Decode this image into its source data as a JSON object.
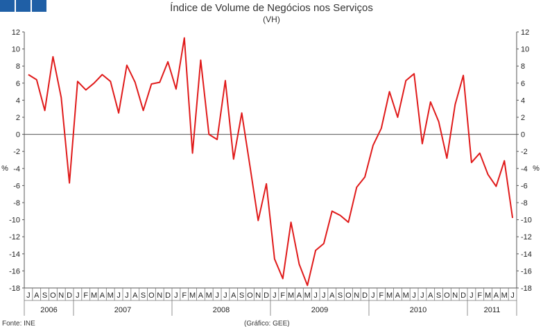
{
  "chart_data": {
    "type": "line",
    "title": "Índice de Volume de Negócios nos Serviços",
    "subtitle": "(VH)",
    "ylabel": "%",
    "ylim": [
      -18,
      12
    ],
    "yticks": [
      12,
      10,
      8,
      6,
      4,
      2,
      0,
      -2,
      -4,
      -6,
      -8,
      -10,
      -12,
      -14,
      -16,
      -18
    ],
    "grid": false,
    "legend": "none",
    "line_color": "#e01a1a",
    "months": [
      "J",
      "A",
      "S",
      "O",
      "N",
      "D",
      "J",
      "F",
      "M",
      "A",
      "M",
      "J",
      "J",
      "A",
      "S",
      "O",
      "N",
      "D",
      "J",
      "F",
      "M",
      "A",
      "M",
      "J",
      "J",
      "A",
      "S",
      "O",
      "N",
      "D",
      "J",
      "F",
      "M",
      "A",
      "M",
      "J",
      "J",
      "A",
      "S",
      "O",
      "N",
      "D",
      "J",
      "F",
      "M",
      "A",
      "M",
      "J",
      "J",
      "A",
      "S",
      "O",
      "N",
      "D",
      "J",
      "F",
      "M",
      "A",
      "M",
      "J"
    ],
    "years": [
      {
        "label": "2006",
        "start": 0,
        "end": 6
      },
      {
        "label": "2007",
        "start": 6,
        "end": 18
      },
      {
        "label": "2008",
        "start": 18,
        "end": 30
      },
      {
        "label": "2009",
        "start": 30,
        "end": 42
      },
      {
        "label": "2010",
        "start": 42,
        "end": 54
      },
      {
        "label": "2011",
        "start": 54,
        "end": 60
      }
    ],
    "values": [
      7.0,
      6.4,
      2.8,
      9.1,
      4.3,
      -5.7,
      6.2,
      5.2,
      6.0,
      7.0,
      6.2,
      2.5,
      8.1,
      6.1,
      2.8,
      5.9,
      6.1,
      8.5,
      5.3,
      11.3,
      -2.2,
      8.7,
      0.0,
      -0.6,
      6.3,
      -2.9,
      2.5,
      -3.7,
      -10.1,
      -5.8,
      -14.6,
      -16.9,
      -10.3,
      -15.2,
      -17.7,
      -13.6,
      -12.8,
      -9.0,
      -9.5,
      -10.3,
      -6.2,
      -5.0,
      -1.3,
      0.7,
      5.0,
      2.0,
      6.3,
      7.1,
      -1.1,
      3.8,
      1.5,
      -2.8,
      3.5,
      6.9,
      -3.3,
      -2.2,
      -4.7,
      -6.1,
      -3.1,
      -9.8
    ]
  },
  "footer": {
    "source": "Fonte: INE",
    "credit": "(Gráfico: GEE)"
  }
}
